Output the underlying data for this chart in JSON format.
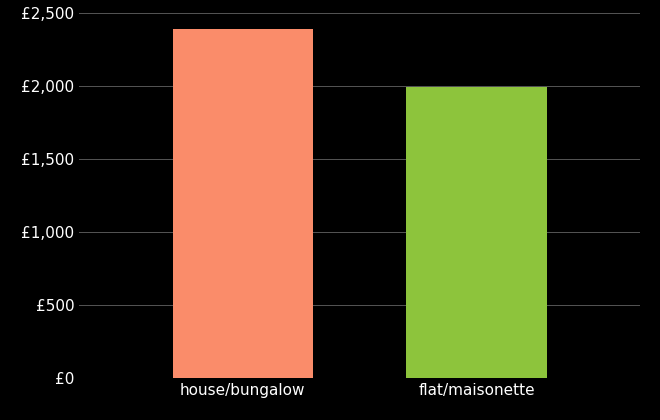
{
  "categories": [
    "house/bungalow",
    "flat/maisonette"
  ],
  "values": [
    2390,
    1990
  ],
  "bar_colors": [
    "#FA8C6A",
    "#8DC43C"
  ],
  "background_color": "#000000",
  "text_color": "#ffffff",
  "grid_color": "#555555",
  "ylim": [
    0,
    2500
  ],
  "yticks": [
    0,
    500,
    1000,
    1500,
    2000,
    2500
  ],
  "ytick_labels": [
    "£0",
    "£500",
    "£1,000",
    "£1,500",
    "£2,000",
    "£2,500"
  ],
  "figsize": [
    6.6,
    4.2
  ],
  "dpi": 100,
  "font_size": 11
}
